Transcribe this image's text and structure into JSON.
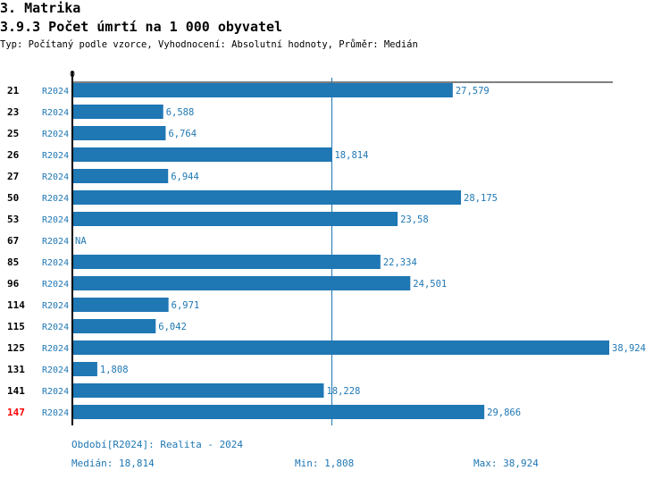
{
  "header": {
    "section": "3. Matrika",
    "title": "3.9.3 Počet úmrtí na 1 000 obyvatel",
    "subtitle": "Typ: Počítaný podle vzorce, Vyhodnocení: Absolutní hodnoty, Průměr: Medián"
  },
  "chart_data": {
    "type": "bar",
    "orientation": "horizontal",
    "axis_zero_label": "0",
    "xlim": [
      0,
      38.924
    ],
    "median": 18.814,
    "bar_color": "#1f77b4",
    "highlight_color": "#ff0000",
    "rows": [
      {
        "id": "21",
        "period": "R2024",
        "value": 27.579,
        "label": "27,579"
      },
      {
        "id": "23",
        "period": "R2024",
        "value": 6.588,
        "label": "6,588"
      },
      {
        "id": "25",
        "period": "R2024",
        "value": 6.764,
        "label": "6,764"
      },
      {
        "id": "26",
        "period": "R2024",
        "value": 18.814,
        "label": "18,814"
      },
      {
        "id": "27",
        "period": "R2024",
        "value": 6.944,
        "label": "6,944"
      },
      {
        "id": "50",
        "period": "R2024",
        "value": 28.175,
        "label": "28,175"
      },
      {
        "id": "53",
        "period": "R2024",
        "value": 23.58,
        "label": "23,58"
      },
      {
        "id": "67",
        "period": "R2024",
        "value": null,
        "label": "NA"
      },
      {
        "id": "85",
        "period": "R2024",
        "value": 22.334,
        "label": "22,334"
      },
      {
        "id": "96",
        "period": "R2024",
        "value": 24.501,
        "label": "24,501"
      },
      {
        "id": "114",
        "period": "R2024",
        "value": 6.971,
        "label": "6,971"
      },
      {
        "id": "115",
        "period": "R2024",
        "value": 6.042,
        "label": "6,042"
      },
      {
        "id": "125",
        "period": "R2024",
        "value": 38.924,
        "label": "38,924"
      },
      {
        "id": "131",
        "period": "R2024",
        "value": 1.808,
        "label": "1,808"
      },
      {
        "id": "141",
        "period": "R2024",
        "value": 18.228,
        "label": "18,228"
      },
      {
        "id": "147",
        "period": "R2024",
        "value": 29.866,
        "label": "29,866",
        "highlight": true
      }
    ]
  },
  "footer": {
    "period": "Období[R2024]: Realita - 2024",
    "median": "Medián: 18,814",
    "min": "Min: 1,808",
    "max": "Max: 38,924"
  }
}
